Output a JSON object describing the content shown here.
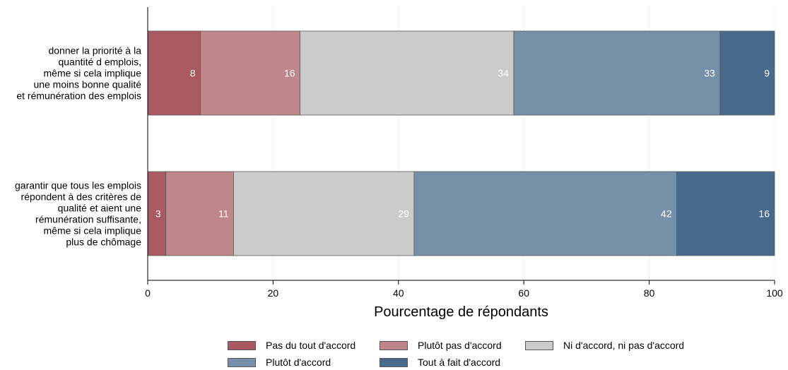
{
  "chart_data": {
    "type": "bar",
    "orientation": "horizontal",
    "stacked": true,
    "xlabel": "Pourcentage de répondants",
    "xlim": [
      0,
      100
    ],
    "xticks": [
      0,
      20,
      40,
      60,
      80,
      100
    ],
    "grid": "dotted vertical",
    "categories": [
      [
        "donner la priorité à la",
        "quantité d emplois,",
        "même si cela implique",
        "une moins bonne qualité",
        "et rémunération des emplois"
      ],
      [
        "garantir que tous les emplois",
        "répondent à des critères de",
        "qualité et aient une",
        "rémunération suffisante,",
        "même si cela implique",
        "plus de chômage"
      ]
    ],
    "series": [
      {
        "name": "Pas du tout d'accord",
        "color": "#a85a60",
        "values": [
          8,
          3
        ],
        "raw": [
          8.4,
          2.9
        ]
      },
      {
        "name": "Plutôt pas d'accord",
        "color": "#bf8789",
        "values": [
          16,
          11
        ],
        "raw": [
          15.9,
          10.8
        ]
      },
      {
        "name": "Ni d'accord, ni pas d'accord",
        "color": "#cbcbcb",
        "values": [
          34,
          29
        ],
        "raw": [
          34.1,
          28.8
        ]
      },
      {
        "name": "Plutôt d'accord",
        "color": "#7690aa",
        "values": [
          33,
          42
        ],
        "raw": [
          32.9,
          41.9
        ]
      },
      {
        "name": "Tout à fait d'accord",
        "color": "#476a8c",
        "values": [
          9,
          16
        ],
        "raw": [
          8.7,
          15.6
        ]
      }
    ],
    "legend_position": "bottom"
  }
}
